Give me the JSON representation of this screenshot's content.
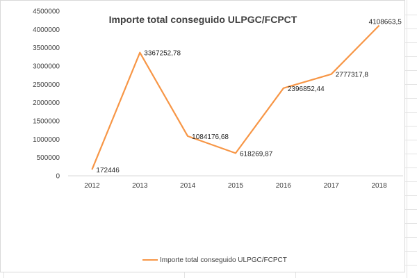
{
  "chart_data": {
    "type": "line",
    "title": "Importe total conseguido ULPGC/FCPCT",
    "categories": [
      "2012",
      "2013",
      "2014",
      "2015",
      "2016",
      "2017",
      "2018"
    ],
    "series": [
      {
        "name": "Importe total conseguido ULPGC/FCPCT",
        "values": [
          172446,
          3367252.78,
          1084176.68,
          618269.87,
          2396852.44,
          2777317.8,
          4108663.5
        ],
        "labels": [
          "172446",
          "3367252,78",
          "1084176,68",
          "618269,87",
          "2396852,44",
          "2777317,8",
          "4108663,5"
        ],
        "color": "#f79646"
      }
    ],
    "yticks": [
      "0",
      "500000",
      "1000000",
      "1500000",
      "2000000",
      "2500000",
      "3000000",
      "3500000",
      "4000000",
      "4500000"
    ],
    "ylim": [
      0,
      4500000
    ],
    "xlabel": "",
    "ylabel": "",
    "grid": false,
    "legend_position": "bottom"
  }
}
